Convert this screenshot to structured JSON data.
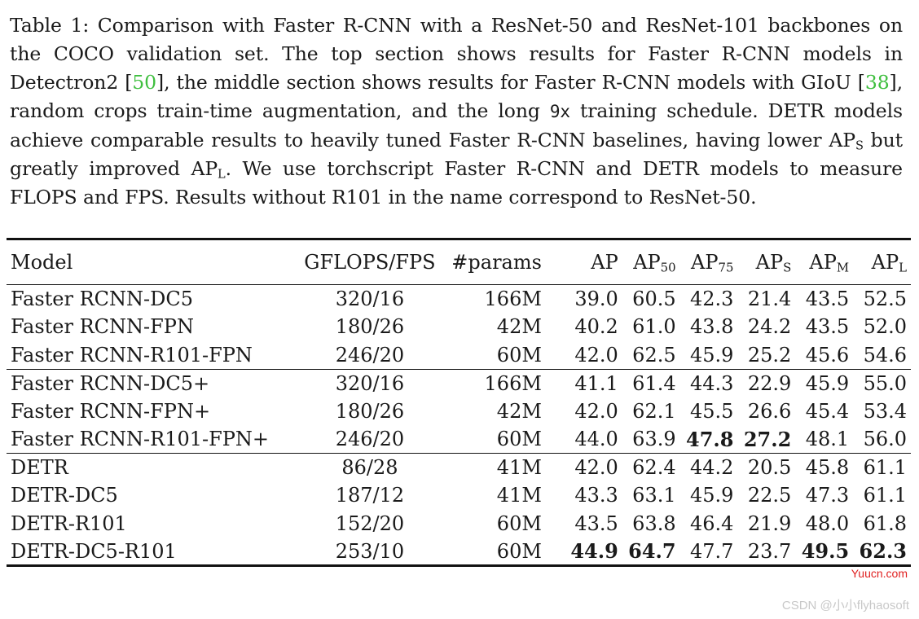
{
  "caption": {
    "p1": "Table 1: Comparison with Faster R-CNN with a ResNet-50 and ResNet-101 backbones on the COCO validation set. The top section shows results for Faster R-CNN models in Detectron2 [",
    "ref1": "50",
    "p2": "], the middle section shows results for Faster R-CNN models with GIoU [",
    "ref2": "38",
    "p3": "], random crops train-time augmentation, and the long ",
    "mono": "9x",
    "p4": " training schedule. DETR models achieve comparable results to heavily tuned Faster R-CNN baselines, having lower AP",
    "sub_s": "S",
    "p5": " but greatly improved AP",
    "sub_l": "L",
    "p6": ". We use torchscript Faster R-CNN and DETR models to measure FLOPS and FPS. Results without R101 in the name correspond to ResNet-50."
  },
  "table": {
    "headers": {
      "model": "Model",
      "gflops": "GFLOPS/FPS",
      "params": "#params",
      "ap": "AP",
      "ap50": "AP",
      "ap50_sub": "50",
      "ap75": "AP",
      "ap75_sub": "75",
      "aps": "AP",
      "aps_sub": "S",
      "apm": "AP",
      "apm_sub": "M",
      "apl": "AP",
      "apl_sub": "L"
    },
    "rows": [
      [
        "Faster RCNN-DC5",
        "320/16",
        "166M",
        "39.0",
        "60.5",
        "42.3",
        "21.4",
        "43.5",
        "52.5"
      ],
      [
        "Faster RCNN-FPN",
        "180/26",
        "42M",
        "40.2",
        "61.0",
        "43.8",
        "24.2",
        "43.5",
        "52.0"
      ],
      [
        "Faster RCNN-R101-FPN",
        "246/20",
        "60M",
        "42.0",
        "62.5",
        "45.9",
        "25.2",
        "45.6",
        "54.6"
      ],
      [
        "Faster RCNN-DC5+",
        "320/16",
        "166M",
        "41.1",
        "61.4",
        "44.3",
        "22.9",
        "45.9",
        "55.0"
      ],
      [
        "Faster RCNN-FPN+",
        "180/26",
        "42M",
        "42.0",
        "62.1",
        "45.5",
        "26.6",
        "45.4",
        "53.4"
      ],
      [
        "Faster RCNN-R101-FPN+",
        "246/20",
        "60M",
        "44.0",
        "63.9",
        "47.8",
        "27.2",
        "48.1",
        "56.0"
      ],
      [
        "DETR",
        "86/28",
        "41M",
        "42.0",
        "62.4",
        "44.2",
        "20.5",
        "45.8",
        "61.1"
      ],
      [
        "DETR-DC5",
        "187/12",
        "41M",
        "43.3",
        "63.1",
        "45.9",
        "22.5",
        "47.3",
        "61.1"
      ],
      [
        "DETR-R101",
        "152/20",
        "60M",
        "43.5",
        "63.8",
        "46.4",
        "21.9",
        "48.0",
        "61.8"
      ],
      [
        "DETR-DC5-R101",
        "253/10",
        "60M",
        "44.9",
        "64.7",
        "47.7",
        "23.7",
        "49.5",
        "62.3"
      ]
    ]
  },
  "watermarks": {
    "site": "Yuucn.com",
    "csdn": "CSDN @小小flyhaosoft"
  }
}
